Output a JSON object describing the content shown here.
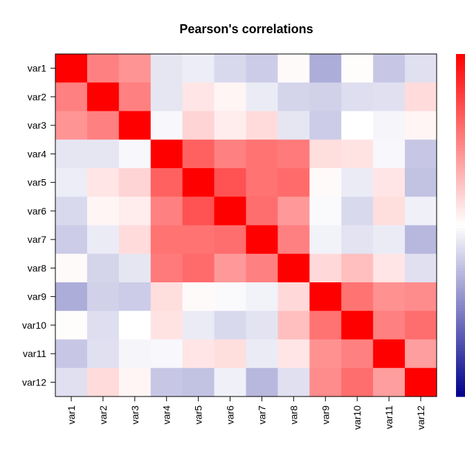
{
  "chart_data": {
    "type": "heatmap",
    "title": "Pearson's correlations",
    "xlabel": "",
    "ylabel": "",
    "categories": [
      "var1",
      "var2",
      "var3",
      "var4",
      "var5",
      "var6",
      "var7",
      "var8",
      "var9",
      "var10",
      "var11",
      "var12"
    ],
    "value_range": [
      -1,
      1
    ],
    "colorscale": {
      "low": "#00008B",
      "mid": "#FFFFFF",
      "high": "#FF0000"
    },
    "grid": false,
    "legend": "right",
    "matrix": [
      [
        1.0,
        0.5,
        0.42,
        -0.1,
        -0.07,
        -0.15,
        -0.2,
        0.02,
        -0.32,
        0.01,
        -0.22,
        -0.12
      ],
      [
        0.5,
        1.0,
        0.5,
        -0.1,
        0.1,
        0.04,
        -0.08,
        -0.17,
        -0.18,
        -0.13,
        -0.12,
        0.14
      ],
      [
        0.42,
        0.5,
        1.0,
        -0.03,
        0.17,
        0.07,
        0.14,
        -0.1,
        -0.2,
        0.0,
        -0.04,
        0.04
      ],
      [
        -0.1,
        -0.1,
        -0.03,
        1.0,
        0.62,
        0.5,
        0.55,
        0.52,
        0.13,
        0.11,
        -0.03,
        -0.22
      ],
      [
        -0.07,
        0.1,
        0.17,
        0.62,
        1.0,
        0.68,
        0.55,
        0.58,
        0.02,
        -0.08,
        0.1,
        -0.24
      ],
      [
        -0.15,
        0.04,
        0.07,
        0.5,
        0.68,
        1.0,
        0.57,
        0.4,
        -0.02,
        -0.15,
        0.13,
        -0.06
      ],
      [
        -0.2,
        -0.08,
        0.14,
        0.55,
        0.55,
        0.57,
        1.0,
        0.5,
        -0.05,
        -0.11,
        -0.08,
        -0.28
      ],
      [
        0.02,
        -0.17,
        -0.1,
        0.52,
        0.58,
        0.4,
        0.5,
        1.0,
        0.15,
        0.25,
        0.1,
        -0.12
      ],
      [
        -0.32,
        -0.18,
        -0.2,
        0.13,
        0.02,
        -0.02,
        -0.05,
        0.15,
        1.0,
        0.55,
        0.43,
        0.45
      ],
      [
        0.01,
        -0.13,
        0.0,
        0.11,
        -0.08,
        -0.15,
        -0.11,
        0.25,
        0.55,
        1.0,
        0.5,
        0.57
      ],
      [
        -0.22,
        -0.12,
        -0.04,
        -0.03,
        0.1,
        0.13,
        -0.08,
        0.1,
        0.43,
        0.5,
        1.0,
        0.38
      ],
      [
        -0.12,
        0.14,
        0.04,
        -0.22,
        -0.24,
        -0.06,
        -0.28,
        -0.12,
        0.45,
        0.57,
        0.38,
        1.0
      ]
    ]
  }
}
